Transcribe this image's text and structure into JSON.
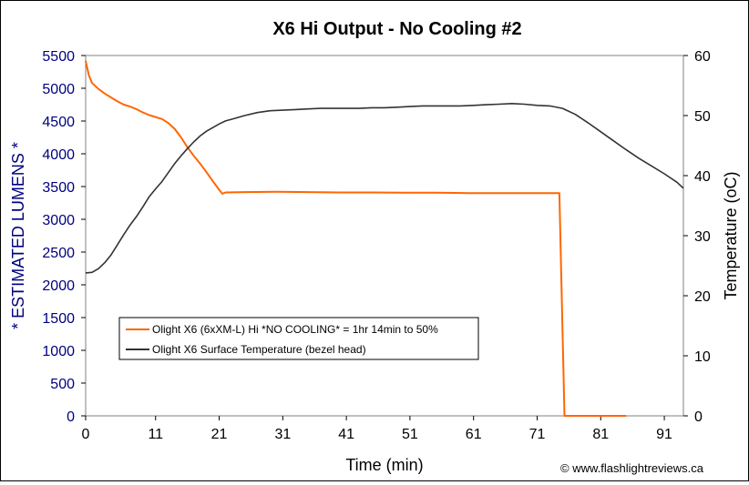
{
  "chart_data": {
    "type": "line",
    "title": "X6 Hi Output - No Cooling #2",
    "xlabel": "Time (min)",
    "ylabel_left": "* ESTIMATED LUMENS *",
    "ylabel_right": "Temperature (oC)",
    "xlim": [
      0,
      94
    ],
    "x_ticks": [
      0,
      11,
      21,
      31,
      41,
      51,
      61,
      71,
      81,
      91
    ],
    "ylim_left": [
      0,
      5500
    ],
    "y_ticks_left": [
      0,
      500,
      1000,
      1500,
      2000,
      2500,
      3000,
      3500,
      4000,
      4500,
      5000,
      5500
    ],
    "ylim_right": [
      0,
      60
    ],
    "y_ticks_right": [
      0,
      10,
      20,
      30,
      40,
      50,
      60
    ],
    "grid": false,
    "legend_position": "lower-left",
    "copyright": "© www.flashlightreviews.ca",
    "colors": {
      "lumens_series": "#ff6600",
      "temperature_series": "#333333",
      "left_axis_text": "#000080"
    },
    "series": [
      {
        "name": "Olight X6 (6xXM-L) Hi *NO COOLING* = 1hr 14min to 50%",
        "axis": "left",
        "x": [
          0,
          0.5,
          1,
          2,
          3,
          4,
          5,
          6,
          7,
          8,
          9,
          10,
          11,
          12,
          13,
          14,
          15,
          16,
          17,
          18,
          19,
          20,
          21,
          21.5,
          22,
          25,
          30,
          35,
          40,
          45,
          50,
          55,
          60,
          65,
          70,
          74.5,
          75.3,
          76,
          80,
          85
        ],
        "y": [
          5420,
          5200,
          5080,
          4990,
          4920,
          4860,
          4800,
          4750,
          4720,
          4680,
          4630,
          4590,
          4560,
          4530,
          4470,
          4380,
          4250,
          4100,
          3970,
          3850,
          3720,
          3580,
          3450,
          3390,
          3410,
          3415,
          3420,
          3415,
          3410,
          3410,
          3405,
          3405,
          3400,
          3400,
          3400,
          3400,
          0,
          0,
          0,
          0
        ]
      },
      {
        "name": "Olight X6 Surface Temperature (bezel head)",
        "axis": "right",
        "x": [
          0,
          1,
          2,
          3,
          4,
          5,
          6,
          7,
          8,
          9,
          10,
          11,
          12,
          13,
          14,
          15,
          16,
          17,
          18,
          19,
          20,
          21,
          22,
          23,
          24,
          25,
          27,
          29,
          31,
          33,
          35,
          37,
          39,
          41,
          43,
          45,
          47,
          49,
          51,
          53,
          55,
          57,
          59,
          61,
          63,
          65,
          67,
          69,
          71,
          73,
          75,
          77,
          79,
          81,
          83,
          85,
          87,
          89,
          91,
          93,
          94
        ],
        "y": [
          23.8,
          23.9,
          24.5,
          25.5,
          26.8,
          28.5,
          30.2,
          31.8,
          33.2,
          34.8,
          36.5,
          37.8,
          39.0,
          40.5,
          42.0,
          43.3,
          44.5,
          45.6,
          46.6,
          47.4,
          48.0,
          48.6,
          49.1,
          49.4,
          49.7,
          50.0,
          50.5,
          50.8,
          50.9,
          51.0,
          51.1,
          51.2,
          51.2,
          51.2,
          51.2,
          51.3,
          51.3,
          51.4,
          51.5,
          51.6,
          51.6,
          51.6,
          51.6,
          51.7,
          51.8,
          51.9,
          52.0,
          51.9,
          51.7,
          51.6,
          51.2,
          50.2,
          48.8,
          47.3,
          45.8,
          44.3,
          42.9,
          41.6,
          40.3,
          38.9,
          37.9
        ]
      }
    ]
  }
}
